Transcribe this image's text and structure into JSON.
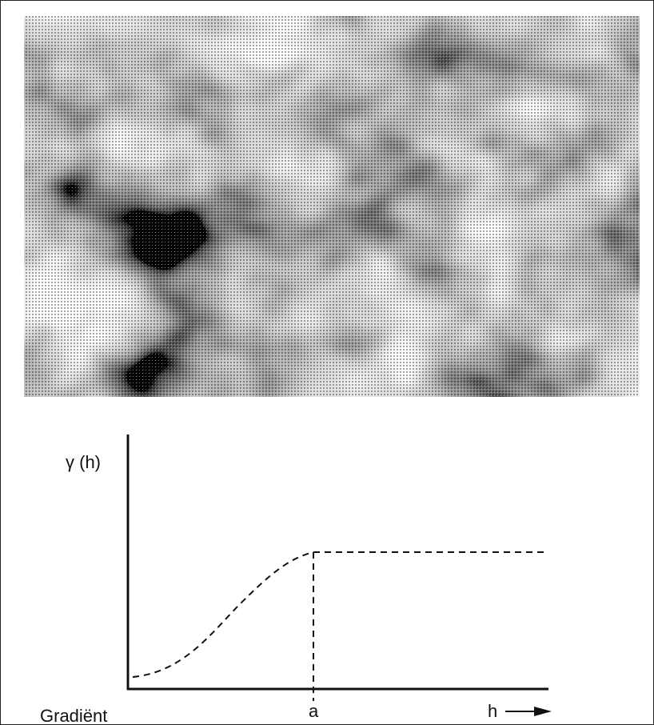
{
  "diagram": {
    "y_axis_label": "γ (h)",
    "range_label": "a",
    "x_axis_label": "h",
    "caption": "Gradiënt"
  }
}
